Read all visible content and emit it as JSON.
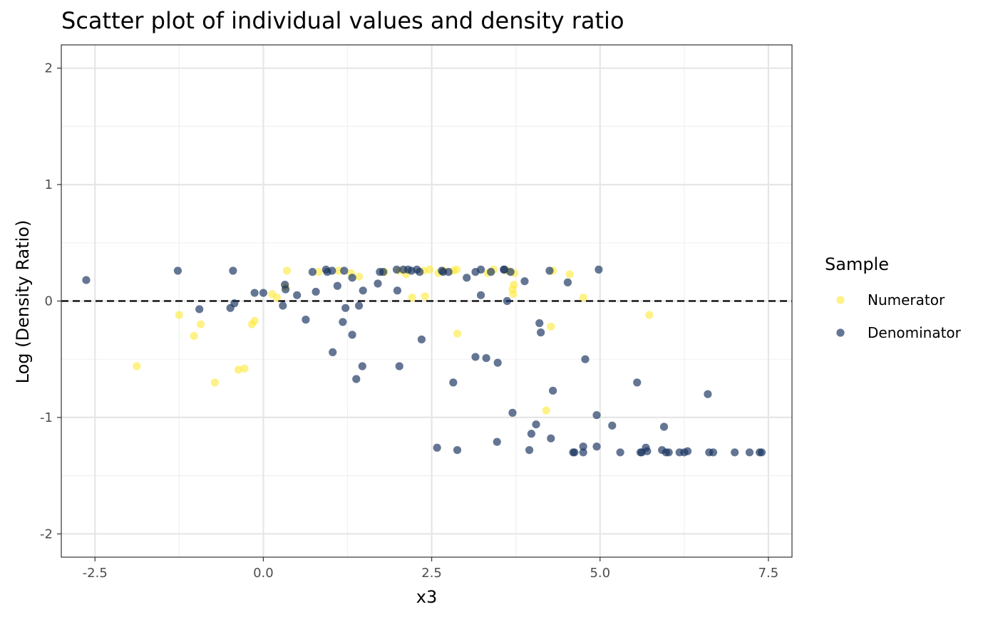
{
  "chart_data": {
    "type": "scatter",
    "title": "Scatter plot of individual values and density ratio",
    "xlabel": "x3",
    "ylabel": "Log (Density Ratio)",
    "xlim": [
      -3.0,
      7.85
    ],
    "ylim": [
      -2.2,
      2.2
    ],
    "x_ticks": [
      -2.5,
      0.0,
      2.5,
      5.0,
      7.5
    ],
    "x_tick_labels": [
      "-2.5",
      "0.0",
      "2.5",
      "5.0",
      "7.5"
    ],
    "y_ticks": [
      -2,
      -1,
      0,
      1,
      2
    ],
    "y_tick_labels": [
      "-2",
      "-1",
      "0",
      "1",
      "2"
    ],
    "reference_line": {
      "y": 0,
      "style": "dashed"
    },
    "grid": true,
    "legend": {
      "title": "Sample",
      "placement": "right"
    },
    "series": [
      {
        "name": "Numerator",
        "color": "#fde725",
        "points": [
          [
            -1.25,
            -0.12
          ],
          [
            -1.88,
            -0.56
          ],
          [
            -1.03,
            -0.3
          ],
          [
            -0.93,
            -0.2
          ],
          [
            -0.72,
            -0.7
          ],
          [
            -0.37,
            -0.59
          ],
          [
            -0.28,
            -0.58
          ],
          [
            -0.17,
            -0.2
          ],
          [
            -0.13,
            -0.17
          ],
          [
            0.13,
            0.06
          ],
          [
            0.2,
            0.03
          ],
          [
            0.33,
            0.12
          ],
          [
            0.35,
            0.26
          ],
          [
            0.82,
            0.25
          ],
          [
            1.12,
            0.26
          ],
          [
            1.3,
            0.24
          ],
          [
            1.42,
            0.21
          ],
          [
            1.8,
            0.25
          ],
          [
            2.02,
            0.26
          ],
          [
            2.12,
            0.23
          ],
          [
            2.21,
            0.03
          ],
          [
            2.38,
            0.26
          ],
          [
            2.4,
            0.04
          ],
          [
            2.47,
            0.27
          ],
          [
            2.6,
            0.24
          ],
          [
            2.68,
            0.26
          ],
          [
            2.82,
            0.26
          ],
          [
            2.87,
            0.27
          ],
          [
            2.88,
            -0.28
          ],
          [
            3.33,
            0.24
          ],
          [
            3.42,
            0.27
          ],
          [
            3.63,
            0.26
          ],
          [
            3.7,
            0.1
          ],
          [
            3.71,
            0.06
          ],
          [
            3.72,
            0.14
          ],
          [
            3.73,
            0.24
          ],
          [
            4.2,
            -0.94
          ],
          [
            4.27,
            -0.22
          ],
          [
            4.3,
            0.26
          ],
          [
            4.55,
            0.23
          ],
          [
            4.75,
            0.03
          ],
          [
            5.73,
            -0.12
          ]
        ]
      },
      {
        "name": "Denominator",
        "color": "#1b3560",
        "points": [
          [
            -2.63,
            0.18
          ],
          [
            -1.27,
            0.26
          ],
          [
            -0.95,
            -0.07
          ],
          [
            -0.45,
            0.26
          ],
          [
            -0.49,
            -0.06
          ],
          [
            -0.43,
            -0.02
          ],
          [
            -0.13,
            0.07
          ],
          [
            0.0,
            0.07
          ],
          [
            0.32,
            0.14
          ],
          [
            0.33,
            0.1
          ],
          [
            0.29,
            -0.04
          ],
          [
            0.5,
            0.05
          ],
          [
            0.63,
            -0.16
          ],
          [
            0.73,
            0.25
          ],
          [
            0.78,
            0.08
          ],
          [
            0.93,
            0.27
          ],
          [
            0.95,
            0.25
          ],
          [
            1.02,
            0.26
          ],
          [
            1.1,
            0.13
          ],
          [
            1.18,
            -0.18
          ],
          [
            1.2,
            0.26
          ],
          [
            1.22,
            -0.06
          ],
          [
            1.32,
            0.2
          ],
          [
            1.32,
            -0.29
          ],
          [
            1.42,
            -0.04
          ],
          [
            1.47,
            -0.56
          ],
          [
            1.48,
            0.09
          ],
          [
            1.38,
            -0.67
          ],
          [
            1.03,
            -0.44
          ],
          [
            1.7,
            0.15
          ],
          [
            1.73,
            0.25
          ],
          [
            1.78,
            0.25
          ],
          [
            1.98,
            0.27
          ],
          [
            1.99,
            0.09
          ],
          [
            2.02,
            -0.56
          ],
          [
            2.08,
            0.27
          ],
          [
            2.15,
            0.27
          ],
          [
            2.2,
            0.26
          ],
          [
            2.28,
            0.27
          ],
          [
            2.32,
            0.25
          ],
          [
            2.35,
            -0.33
          ],
          [
            2.58,
            -1.26
          ],
          [
            2.65,
            0.26
          ],
          [
            2.67,
            0.25
          ],
          [
            2.75,
            0.25
          ],
          [
            2.82,
            -0.7
          ],
          [
            2.88,
            -1.28
          ],
          [
            3.02,
            0.2
          ],
          [
            3.15,
            0.25
          ],
          [
            3.15,
            -0.48
          ],
          [
            3.23,
            0.27
          ],
          [
            3.23,
            0.05
          ],
          [
            3.31,
            -0.49
          ],
          [
            3.38,
            0.25
          ],
          [
            3.47,
            -1.21
          ],
          [
            3.48,
            -0.53
          ],
          [
            3.57,
            0.27
          ],
          [
            3.58,
            0.27
          ],
          [
            3.62,
            0.0
          ],
          [
            3.67,
            0.25
          ],
          [
            3.7,
            -0.96
          ],
          [
            3.88,
            0.17
          ],
          [
            3.95,
            -1.28
          ],
          [
            3.98,
            -1.14
          ],
          [
            4.05,
            -1.06
          ],
          [
            4.1,
            -0.19
          ],
          [
            4.12,
            -0.27
          ],
          [
            4.25,
            0.26
          ],
          [
            4.27,
            -1.18
          ],
          [
            4.3,
            -0.77
          ],
          [
            4.52,
            0.16
          ],
          [
            4.6,
            -1.3
          ],
          [
            4.62,
            -1.3
          ],
          [
            4.75,
            -1.3
          ],
          [
            4.75,
            -1.25
          ],
          [
            4.78,
            -0.5
          ],
          [
            4.95,
            -1.25
          ],
          [
            4.95,
            -0.98
          ],
          [
            4.98,
            0.27
          ],
          [
            5.18,
            -1.07
          ],
          [
            5.3,
            -1.3
          ],
          [
            5.55,
            -0.7
          ],
          [
            5.6,
            -1.3
          ],
          [
            5.62,
            -1.3
          ],
          [
            5.68,
            -1.26
          ],
          [
            5.7,
            -1.29
          ],
          [
            5.92,
            -1.28
          ],
          [
            5.95,
            -1.08
          ],
          [
            5.98,
            -1.3
          ],
          [
            6.02,
            -1.3
          ],
          [
            6.18,
            -1.3
          ],
          [
            6.25,
            -1.3
          ],
          [
            6.3,
            -1.29
          ],
          [
            6.6,
            -0.8
          ],
          [
            6.62,
            -1.3
          ],
          [
            6.68,
            -1.3
          ],
          [
            7.0,
            -1.3
          ],
          [
            7.22,
            -1.3
          ],
          [
            7.37,
            -1.3
          ],
          [
            7.4,
            -1.3
          ]
        ]
      }
    ]
  }
}
